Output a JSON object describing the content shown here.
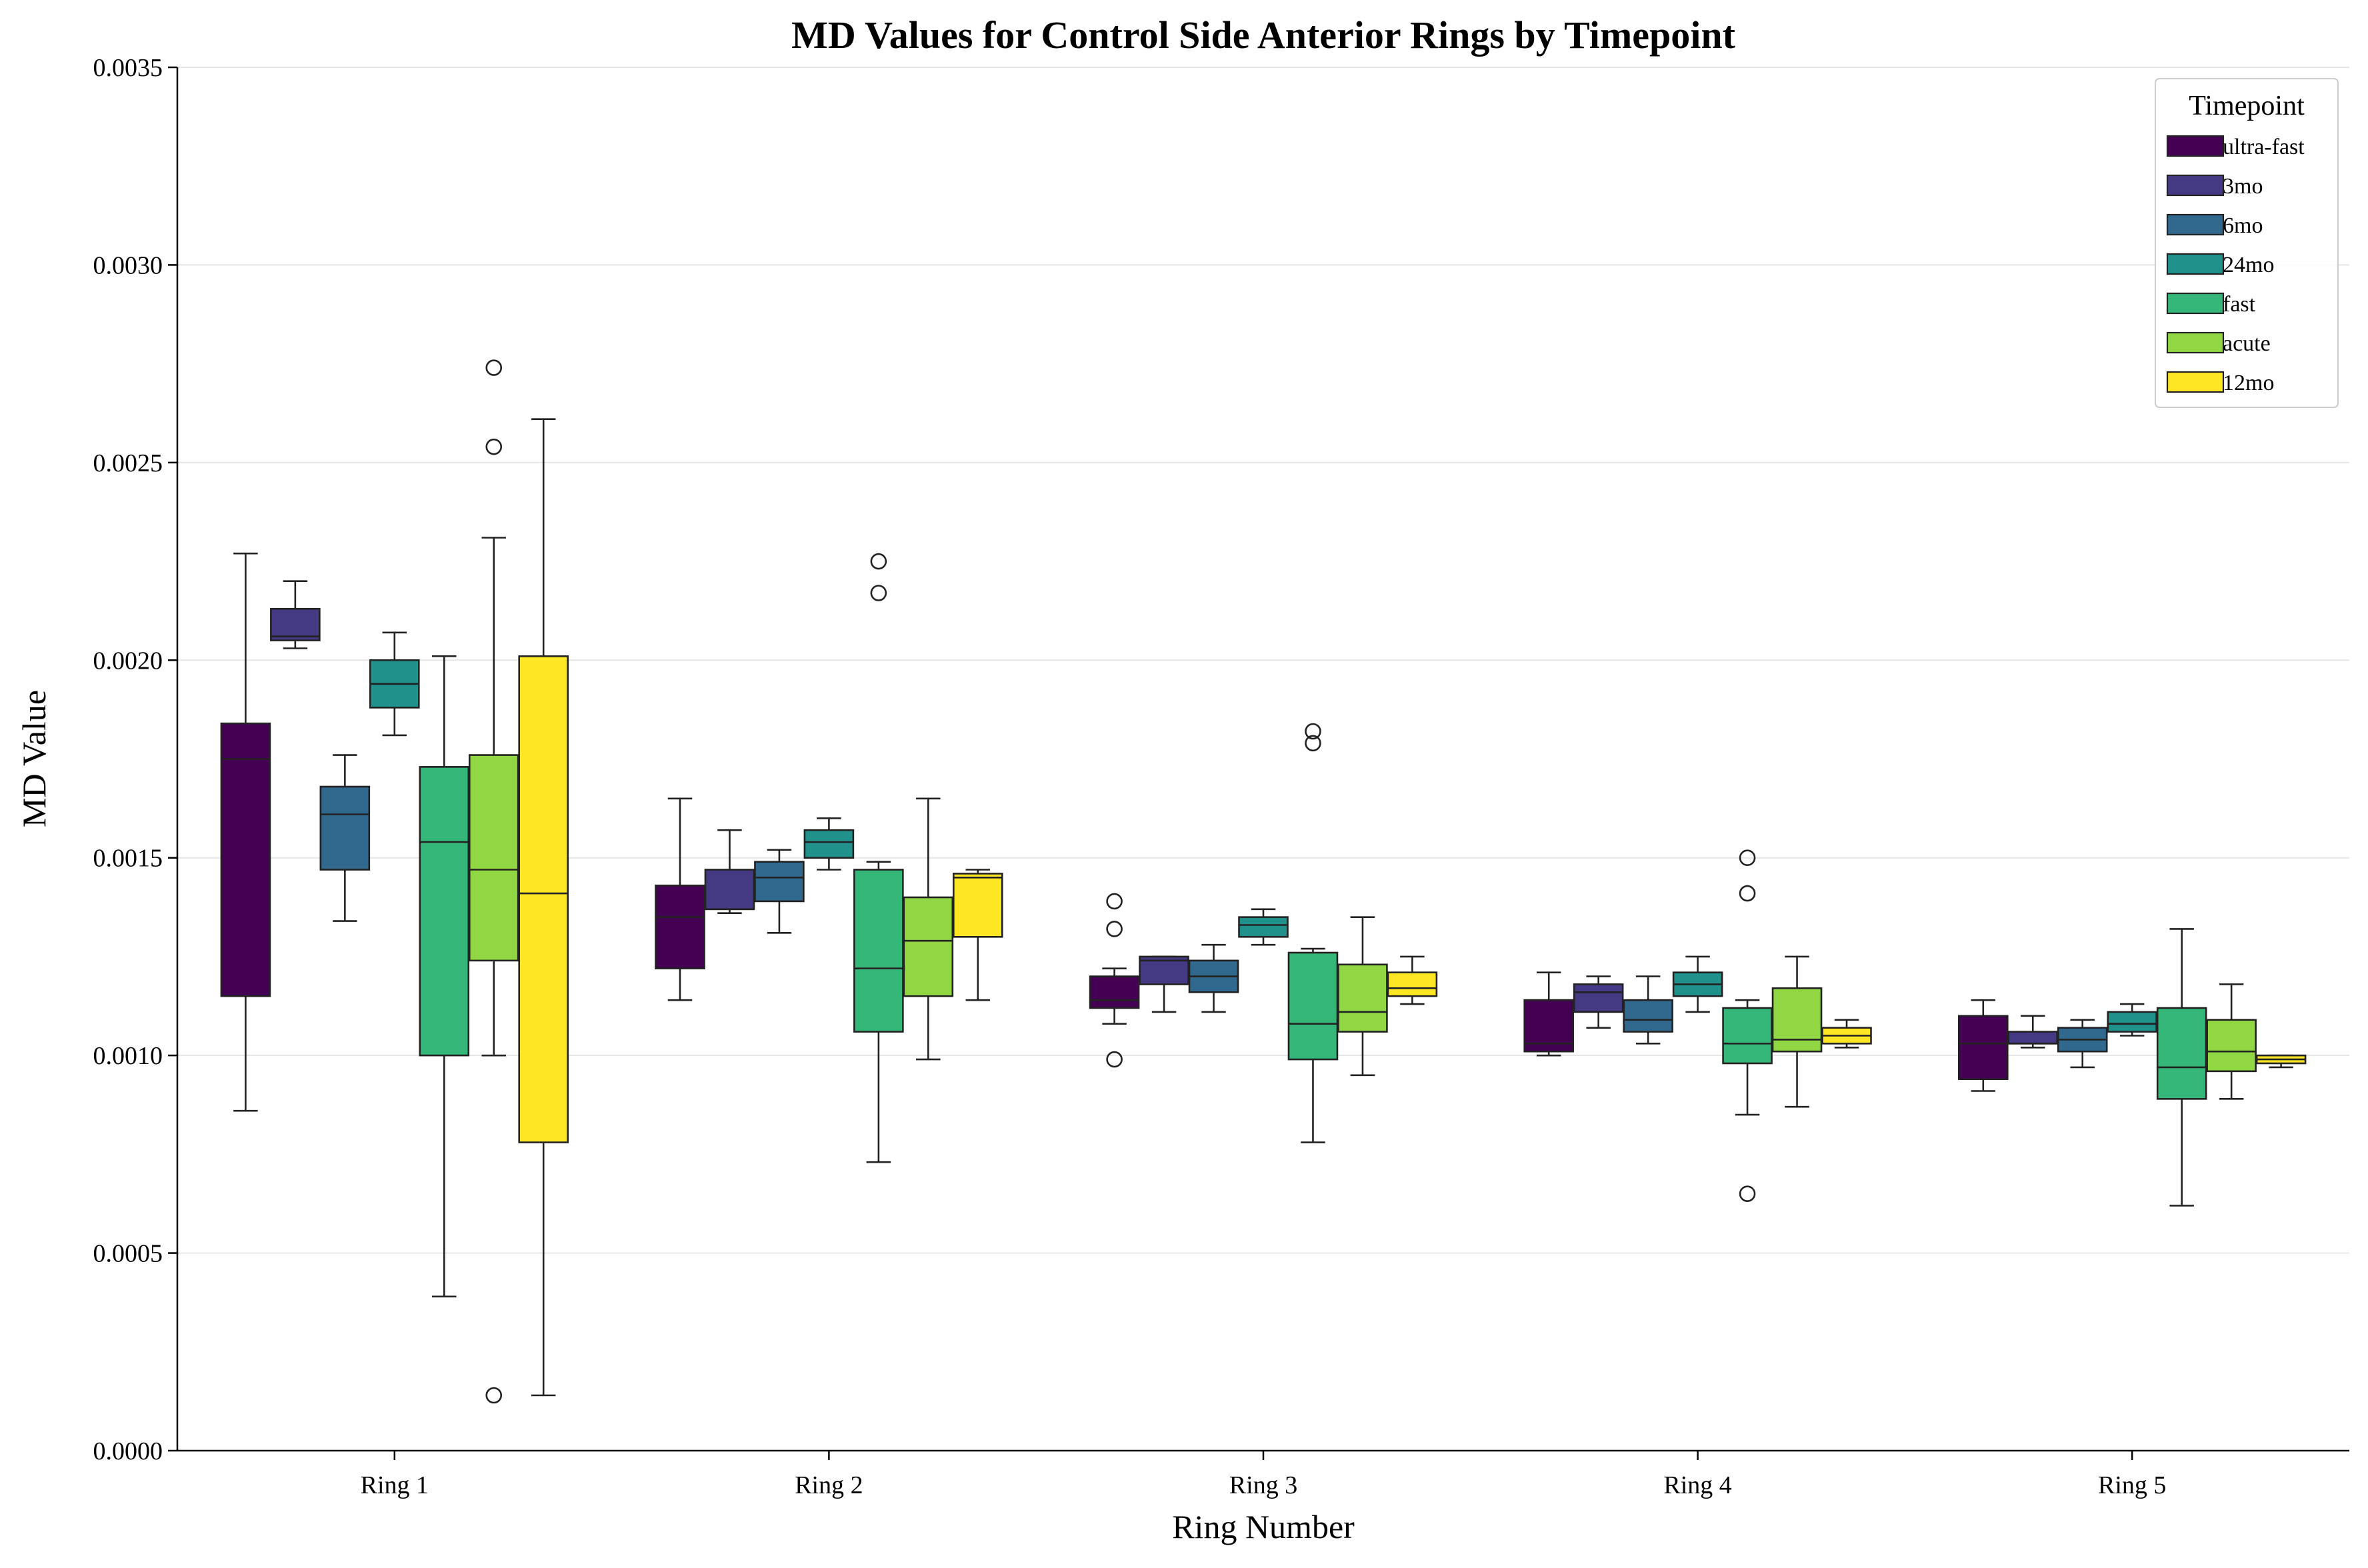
{
  "chart_data": {
    "type": "box",
    "title": "MD Values for Control Side Anterior Rings by Timepoint",
    "xlabel": "Ring Number",
    "ylabel": "MD Value",
    "ylim": [
      0,
      0.0035
    ],
    "yticks": [
      "0.0000",
      "0.0005",
      "0.0010",
      "0.0015",
      "0.0020",
      "0.0025",
      "0.0030",
      "0.0035"
    ],
    "ytick_values": [
      0,
      0.0005,
      0.001,
      0.0015,
      0.002,
      0.0025,
      0.003,
      0.0035
    ],
    "grid": "horizontal",
    "categories": [
      "Ring 1",
      "Ring 2",
      "Ring 3",
      "Ring 4",
      "Ring 5"
    ],
    "legend": {
      "title": "Timepoint",
      "placement": "top-right"
    },
    "series": [
      {
        "name": "ultra-fast",
        "color": "#440154",
        "boxes": [
          {
            "whislo": 0.00086,
            "q1": 0.00115,
            "med": 0.00175,
            "q3": 0.00184,
            "whishi": 0.00227,
            "fliers": []
          },
          {
            "whislo": 0.00114,
            "q1": 0.00122,
            "med": 0.00135,
            "q3": 0.00143,
            "whishi": 0.00165,
            "fliers": []
          },
          {
            "whislo": 0.00108,
            "q1": 0.00112,
            "med": 0.00114,
            "q3": 0.0012,
            "whishi": 0.00122,
            "fliers": [
              0.00099,
              0.00132,
              0.00139
            ]
          },
          {
            "whislo": 0.001,
            "q1": 0.00101,
            "med": 0.00103,
            "q3": 0.00114,
            "whishi": 0.00121,
            "fliers": []
          },
          {
            "whislo": 0.00091,
            "q1": 0.00094,
            "med": 0.00103,
            "q3": 0.0011,
            "whishi": 0.00114,
            "fliers": []
          }
        ]
      },
      {
        "name": "3mo",
        "color": "#443983",
        "boxes": [
          {
            "whislo": 0.00203,
            "q1": 0.00205,
            "med": 0.00206,
            "q3": 0.00213,
            "whishi": 0.0022,
            "fliers": []
          },
          {
            "whislo": 0.00136,
            "q1": 0.00137,
            "med": 0.00137,
            "q3": 0.00147,
            "whishi": 0.00157,
            "fliers": []
          },
          {
            "whislo": 0.00111,
            "q1": 0.00118,
            "med": 0.00124,
            "q3": 0.00125,
            "whishi": 0.00125,
            "fliers": []
          },
          {
            "whislo": 0.00107,
            "q1": 0.00111,
            "med": 0.00116,
            "q3": 0.00118,
            "whishi": 0.0012,
            "fliers": []
          },
          {
            "whislo": 0.00102,
            "q1": 0.00103,
            "med": 0.00103,
            "q3": 0.00106,
            "whishi": 0.0011,
            "fliers": []
          }
        ]
      },
      {
        "name": "6mo",
        "color": "#31688e",
        "boxes": [
          {
            "whislo": 0.00134,
            "q1": 0.00147,
            "med": 0.00161,
            "q3": 0.00168,
            "whishi": 0.00176,
            "fliers": []
          },
          {
            "whislo": 0.00131,
            "q1": 0.00139,
            "med": 0.00145,
            "q3": 0.00149,
            "whishi": 0.00152,
            "fliers": []
          },
          {
            "whislo": 0.00111,
            "q1": 0.00116,
            "med": 0.0012,
            "q3": 0.00124,
            "whishi": 0.00128,
            "fliers": []
          },
          {
            "whislo": 0.00103,
            "q1": 0.00106,
            "med": 0.00109,
            "q3": 0.00114,
            "whishi": 0.0012,
            "fliers": []
          },
          {
            "whislo": 0.00097,
            "q1": 0.00101,
            "med": 0.00104,
            "q3": 0.00107,
            "whishi": 0.00109,
            "fliers": []
          }
        ]
      },
      {
        "name": "24mo",
        "color": "#21918c",
        "boxes": [
          {
            "whislo": 0.00181,
            "q1": 0.00188,
            "med": 0.00194,
            "q3": 0.002,
            "whishi": 0.00207,
            "fliers": []
          },
          {
            "whislo": 0.00147,
            "q1": 0.0015,
            "med": 0.00154,
            "q3": 0.00157,
            "whishi": 0.0016,
            "fliers": []
          },
          {
            "whislo": 0.00128,
            "q1": 0.0013,
            "med": 0.00133,
            "q3": 0.00135,
            "whishi": 0.00137,
            "fliers": []
          },
          {
            "whislo": 0.00111,
            "q1": 0.00115,
            "med": 0.00118,
            "q3": 0.00121,
            "whishi": 0.00125,
            "fliers": []
          },
          {
            "whislo": 0.00105,
            "q1": 0.00106,
            "med": 0.00108,
            "q3": 0.00111,
            "whishi": 0.00113,
            "fliers": []
          }
        ]
      },
      {
        "name": "fast",
        "color": "#35b779",
        "boxes": [
          {
            "whislo": 0.00039,
            "q1": 0.001,
            "med": 0.00154,
            "q3": 0.00173,
            "whishi": 0.00201,
            "fliers": []
          },
          {
            "whislo": 0.00073,
            "q1": 0.00106,
            "med": 0.00122,
            "q3": 0.00147,
            "whishi": 0.00149,
            "fliers": [
              0.00217,
              0.00225
            ]
          },
          {
            "whislo": 0.00078,
            "q1": 0.00099,
            "med": 0.00108,
            "q3": 0.00126,
            "whishi": 0.00127,
            "fliers": [
              0.00179,
              0.00182
            ]
          },
          {
            "whislo": 0.00085,
            "q1": 0.00098,
            "med": 0.00103,
            "q3": 0.00112,
            "whishi": 0.00114,
            "fliers": [
              0.00065,
              0.00141,
              0.0015
            ]
          },
          {
            "whislo": 0.00062,
            "q1": 0.00089,
            "med": 0.00097,
            "q3": 0.00112,
            "whishi": 0.00132,
            "fliers": []
          }
        ]
      },
      {
        "name": "acute",
        "color": "#90d743",
        "boxes": [
          {
            "whislo": 0.001,
            "q1": 0.00124,
            "med": 0.00147,
            "q3": 0.00176,
            "whishi": 0.00231,
            "fliers": [
              0.00014,
              0.00254,
              0.00274
            ]
          },
          {
            "whislo": 0.00099,
            "q1": 0.00115,
            "med": 0.00129,
            "q3": 0.0014,
            "whishi": 0.00165,
            "fliers": []
          },
          {
            "whislo": 0.00095,
            "q1": 0.00106,
            "med": 0.00111,
            "q3": 0.00123,
            "whishi": 0.00135,
            "fliers": []
          },
          {
            "whislo": 0.00087,
            "q1": 0.00101,
            "med": 0.00104,
            "q3": 0.00117,
            "whishi": 0.00125,
            "fliers": []
          },
          {
            "whislo": 0.00089,
            "q1": 0.00096,
            "med": 0.00101,
            "q3": 0.00109,
            "whishi": 0.00118,
            "fliers": []
          }
        ]
      },
      {
        "name": "12mo",
        "color": "#fde725",
        "boxes": [
          {
            "whislo": 0.00014,
            "q1": 0.00078,
            "med": 0.00141,
            "q3": 0.00201,
            "whishi": 0.00261,
            "fliers": []
          },
          {
            "whislo": 0.00114,
            "q1": 0.0013,
            "med": 0.00145,
            "q3": 0.00146,
            "whishi": 0.00147,
            "fliers": []
          },
          {
            "whislo": 0.00113,
            "q1": 0.00115,
            "med": 0.00117,
            "q3": 0.00121,
            "whishi": 0.00125,
            "fliers": []
          },
          {
            "whislo": 0.00102,
            "q1": 0.00103,
            "med": 0.00105,
            "q3": 0.00107,
            "whishi": 0.00109,
            "fliers": []
          },
          {
            "whislo": 0.00097,
            "q1": 0.00098,
            "med": 0.00099,
            "q3": 0.001,
            "whishi": 0.001,
            "fliers": []
          }
        ]
      }
    ]
  }
}
